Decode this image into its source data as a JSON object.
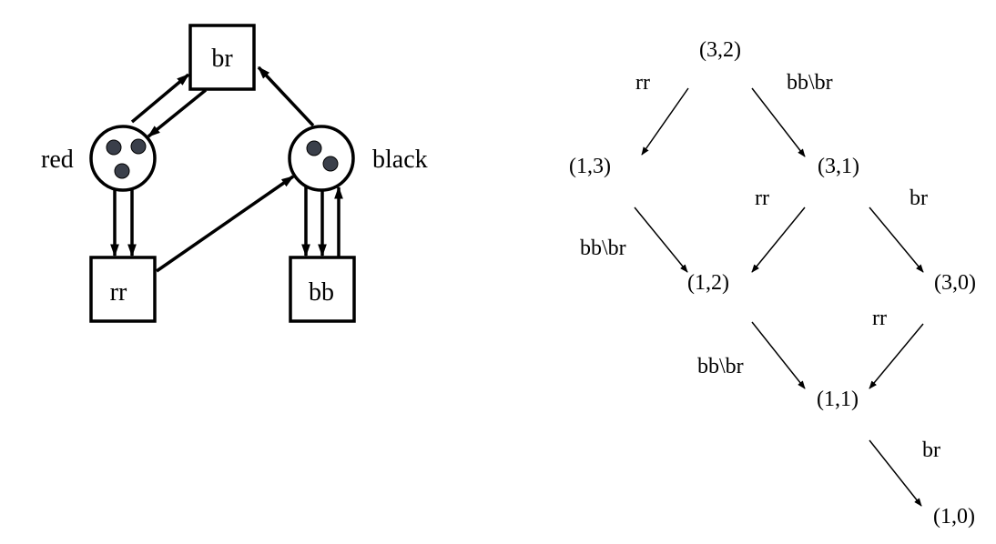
{
  "petri_net": {
    "places": {
      "red": "red",
      "black": "black"
    },
    "transitions": {
      "br": "br",
      "rr": "rr",
      "bb": "bb"
    },
    "tokens": {
      "red": 3,
      "black": 2
    }
  },
  "state_graph": {
    "states": {
      "s32": "(3,2)",
      "s13": "(1,3)",
      "s31": "(3,1)",
      "s12": "(1,2)",
      "s30": "(3,0)",
      "s11": "(1,1)",
      "s10": "(1,0)"
    },
    "edge_labels": {
      "e32_13": "rr",
      "e32_31": "bb\\br",
      "e31_12": "rr",
      "e31_30": "br",
      "e13_12": "bb\\br",
      "e12_11": "bb\\br",
      "e30_11": "rr",
      "e11_10": "br"
    }
  }
}
